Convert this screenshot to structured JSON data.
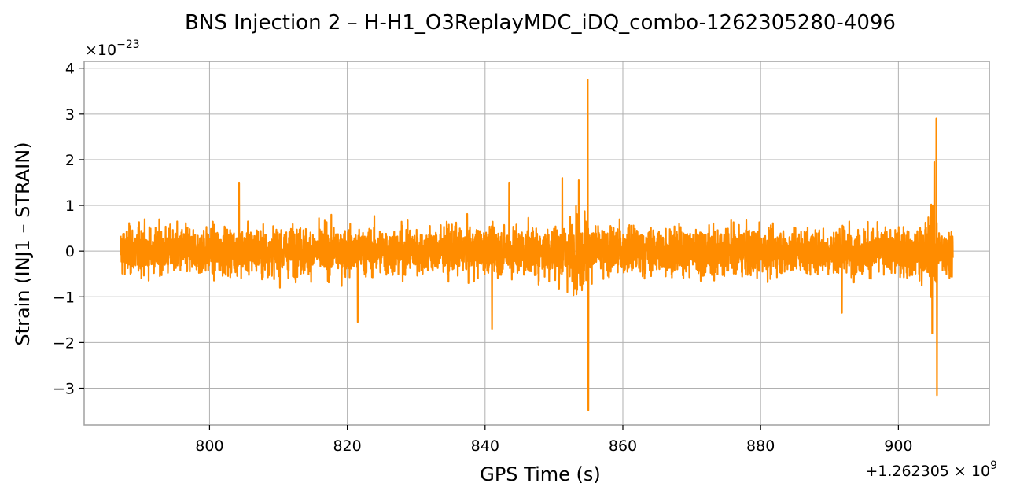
{
  "chart_data": {
    "type": "line",
    "title": "BNS Injection 2 – H-H1_O3ReplayMDC_iDQ_combo-1262305280-4096",
    "xlabel": "GPS Time (s)",
    "ylabel": "Strain (INJ1 – STRAIN)",
    "y_scale_prefix": "×10",
    "y_scale_exponent": "−23",
    "x_offset_text": "+1.262305 × 10",
    "x_offset_exponent": "9",
    "x_ticks": [
      800,
      820,
      840,
      860,
      880,
      900
    ],
    "x_tick_labels": [
      "800",
      "820",
      "840",
      "860",
      "880",
      "900"
    ],
    "y_ticks": [
      -3,
      -2,
      -1,
      0,
      1,
      2,
      3,
      4
    ],
    "y_tick_labels": [
      "−3",
      "−2",
      "−1",
      "0",
      "1",
      "2",
      "3",
      "4"
    ],
    "xlim": [
      781.8,
      913.2
    ],
    "ylim": [
      -3.8,
      4.15
    ],
    "grid": true,
    "line_color": "#ff8c00",
    "series": [
      {
        "x_range": [
          787.1,
          907.9
        ],
        "baseline_envelope": 0.85,
        "features": [
          {
            "x": 851.2,
            "y": 1.6
          },
          {
            "x": 853.6,
            "y": 1.55
          },
          {
            "x": 854.9,
            "y": 3.75
          },
          {
            "x": 855.0,
            "y": -3.48
          },
          {
            "x": 843.5,
            "y": 1.5
          },
          {
            "x": 841.0,
            "y": -1.7
          },
          {
            "x": 821.5,
            "y": -1.55
          },
          {
            "x": 804.3,
            "y": 1.5
          },
          {
            "x": 905.5,
            "y": 2.9
          },
          {
            "x": 905.6,
            "y": -3.15
          },
          {
            "x": 904.9,
            "y": -1.8
          },
          {
            "x": 905.2,
            "y": 1.95
          },
          {
            "x": 891.8,
            "y": -1.35
          }
        ]
      }
    ]
  }
}
